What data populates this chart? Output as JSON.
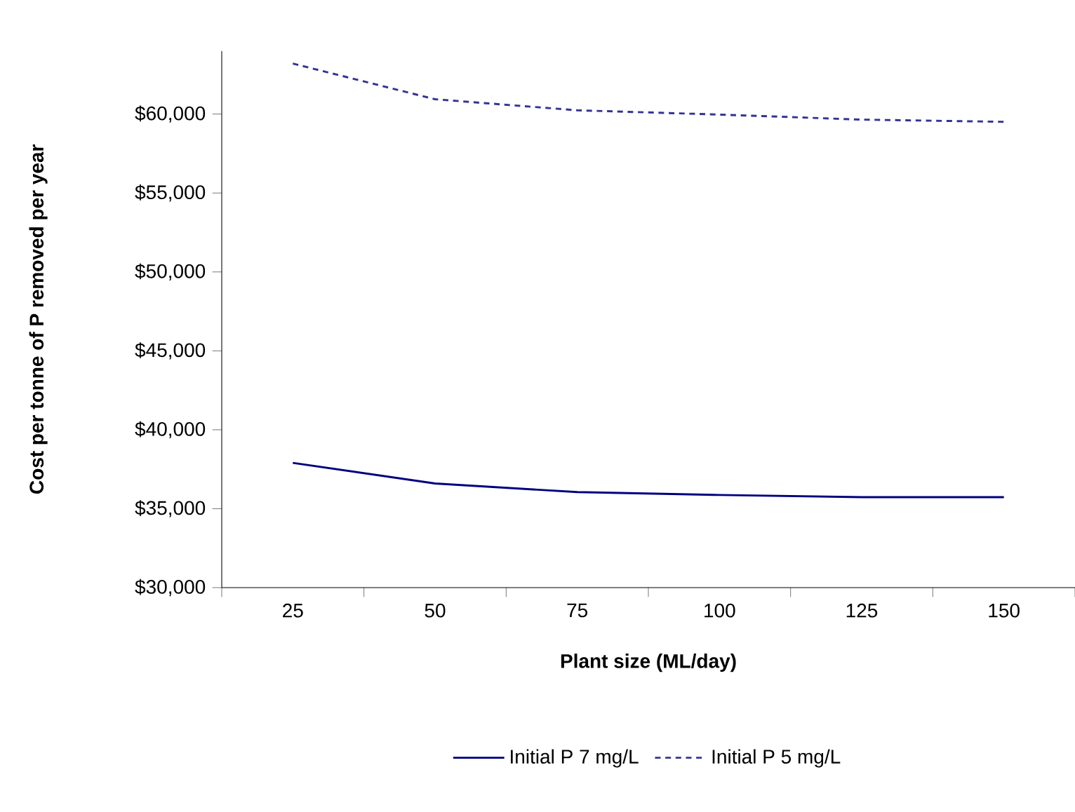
{
  "chart_data": {
    "type": "line",
    "xlabel": "Plant size (ML/day)",
    "ylabel": "Cost per tonne of P removed per year",
    "categories": [
      "25",
      "50",
      "75",
      "100",
      "125",
      "150"
    ],
    "series": [
      {
        "name": "Initial P 7 mg/L",
        "color": "#000080",
        "line_style": "solid",
        "values": [
          37900,
          36600,
          36050,
          35870,
          35730,
          35730
        ]
      },
      {
        "name": "Initial P 5 mg/L",
        "color": "#333399",
        "line_style": "dashed",
        "values": [
          63200,
          60940,
          60240,
          59970,
          59650,
          59510
        ]
      }
    ],
    "ylim": [
      30000,
      64000
    ],
    "yticks": [
      {
        "value": 30000,
        "label": "$30,000"
      },
      {
        "value": 35000,
        "label": "$35,000"
      },
      {
        "value": 40000,
        "label": "$40,000"
      },
      {
        "value": 45000,
        "label": "$45,000"
      },
      {
        "value": 50000,
        "label": "$50,000"
      },
      {
        "value": 55000,
        "label": "$55,000"
      },
      {
        "value": 60000,
        "label": "$60,000"
      }
    ],
    "grid": false,
    "legend": "bottom",
    "marker": "none"
  }
}
